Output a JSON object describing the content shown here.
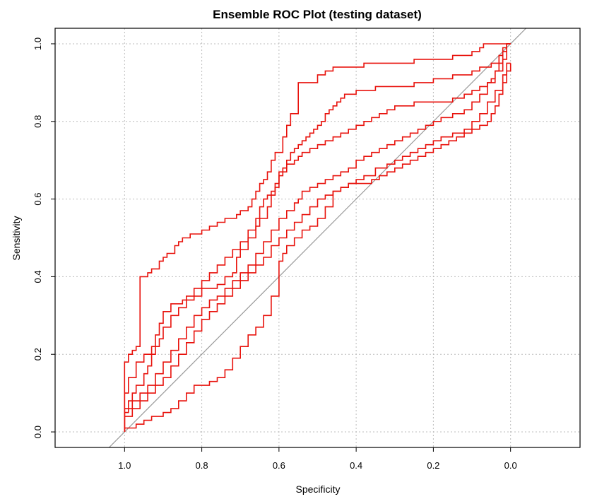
{
  "chart_data": {
    "type": "line",
    "title": "Ensemble ROC Plot (testing dataset)",
    "xlabel": "Specificity",
    "ylabel": "Sensitivity",
    "x_reversed": true,
    "xlim": [
      1.18,
      -0.18
    ],
    "ylim": [
      -0.04,
      1.04
    ],
    "x_ticks": [
      1.0,
      0.8,
      0.6,
      0.4,
      0.2,
      0.0
    ],
    "x_tick_labels": [
      "1.0",
      "0.8",
      "0.6",
      "0.4",
      "0.2",
      "0.0"
    ],
    "y_ticks": [
      0.0,
      0.2,
      0.4,
      0.6,
      0.8,
      1.0
    ],
    "y_tick_labels": [
      "0.0",
      "0.2",
      "0.4",
      "0.6",
      "0.8",
      "1.0"
    ],
    "grid": true,
    "line_color": "#e8120c",
    "reference_line_color": "#999999",
    "reference_line": {
      "x": [
        1.0,
        0.0
      ],
      "y": [
        0.0,
        1.0
      ]
    },
    "series": [
      {
        "x": [
          1.0,
          1.0,
          0.99,
          0.98,
          0.97,
          0.96,
          0.95,
          0.94,
          0.93,
          0.91,
          0.9,
          0.89,
          0.87,
          0.86,
          0.85,
          0.83,
          0.82,
          0.8,
          0.79,
          0.78,
          0.77,
          0.76,
          0.75,
          0.74,
          0.73,
          0.71,
          0.7,
          0.69,
          0.68,
          0.67,
          0.66,
          0.65,
          0.64,
          0.63,
          0.62,
          0.61,
          0.6,
          0.59,
          0.58,
          0.57,
          0.56,
          0.55,
          0.54,
          0.53,
          0.5,
          0.48,
          0.46,
          0.43,
          0.4,
          0.38,
          0.35,
          0.3,
          0.25,
          0.2,
          0.15,
          0.1,
          0.08,
          0.07,
          0.05,
          0.03,
          0.01,
          0.0
        ],
        "y": [
          0.0,
          0.13,
          0.18,
          0.2,
          0.21,
          0.22,
          0.4,
          0.4,
          0.41,
          0.42,
          0.44,
          0.45,
          0.46,
          0.48,
          0.49,
          0.5,
          0.51,
          0.51,
          0.52,
          0.52,
          0.53,
          0.53,
          0.54,
          0.54,
          0.55,
          0.55,
          0.56,
          0.57,
          0.57,
          0.58,
          0.6,
          0.62,
          0.64,
          0.65,
          0.67,
          0.7,
          0.72,
          0.72,
          0.76,
          0.79,
          0.82,
          0.82,
          0.9,
          0.9,
          0.9,
          0.92,
          0.93,
          0.94,
          0.94,
          0.94,
          0.95,
          0.95,
          0.95,
          0.96,
          0.96,
          0.97,
          0.98,
          0.99,
          1.0,
          1.0,
          1.0,
          1.0
        ]
      },
      {
        "x": [
          1.0,
          1.0,
          0.99,
          0.98,
          0.97,
          0.95,
          0.94,
          0.93,
          0.92,
          0.91,
          0.9,
          0.88,
          0.85,
          0.82,
          0.8,
          0.78,
          0.76,
          0.74,
          0.72,
          0.71,
          0.7,
          0.68,
          0.66,
          0.65,
          0.63,
          0.62,
          0.61,
          0.6,
          0.59,
          0.58,
          0.57,
          0.56,
          0.55,
          0.54,
          0.53,
          0.52,
          0.51,
          0.5,
          0.49,
          0.48,
          0.47,
          0.46,
          0.45,
          0.44,
          0.43,
          0.4,
          0.35,
          0.3,
          0.25,
          0.2,
          0.15,
          0.1,
          0.08,
          0.05,
          0.03,
          0.02,
          0.01,
          0.0,
          0.0
        ],
        "y": [
          0.0,
          0.02,
          0.05,
          0.08,
          0.1,
          0.12,
          0.15,
          0.17,
          0.2,
          0.25,
          0.28,
          0.31,
          0.33,
          0.34,
          0.35,
          0.37,
          0.37,
          0.38,
          0.4,
          0.41,
          0.45,
          0.47,
          0.5,
          0.53,
          0.55,
          0.58,
          0.61,
          0.63,
          0.66,
          0.68,
          0.7,
          0.72,
          0.73,
          0.74,
          0.75,
          0.76,
          0.77,
          0.78,
          0.79,
          0.8,
          0.82,
          0.83,
          0.84,
          0.85,
          0.86,
          0.87,
          0.88,
          0.89,
          0.89,
          0.9,
          0.91,
          0.92,
          0.93,
          0.94,
          0.95,
          0.97,
          0.99,
          1.0,
          1.0
        ]
      },
      {
        "x": [
          1.0,
          1.0,
          0.99,
          0.97,
          0.95,
          0.93,
          0.91,
          0.9,
          0.88,
          0.86,
          0.84,
          0.82,
          0.8,
          0.78,
          0.76,
          0.74,
          0.72,
          0.7,
          0.68,
          0.66,
          0.65,
          0.64,
          0.63,
          0.62,
          0.61,
          0.6,
          0.58,
          0.56,
          0.55,
          0.54,
          0.52,
          0.5,
          0.48,
          0.46,
          0.44,
          0.42,
          0.4,
          0.38,
          0.36,
          0.34,
          0.32,
          0.3,
          0.25,
          0.2,
          0.15,
          0.12,
          0.1,
          0.08,
          0.06,
          0.05,
          0.04,
          0.03,
          0.02,
          0.01,
          0.0
        ],
        "y": [
          0.0,
          0.05,
          0.1,
          0.14,
          0.18,
          0.2,
          0.22,
          0.24,
          0.27,
          0.3,
          0.32,
          0.35,
          0.37,
          0.39,
          0.41,
          0.43,
          0.45,
          0.47,
          0.49,
          0.52,
          0.55,
          0.58,
          0.6,
          0.61,
          0.62,
          0.64,
          0.67,
          0.69,
          0.7,
          0.71,
          0.72,
          0.73,
          0.74,
          0.75,
          0.76,
          0.77,
          0.78,
          0.79,
          0.8,
          0.81,
          0.82,
          0.83,
          0.84,
          0.85,
          0.85,
          0.86,
          0.87,
          0.88,
          0.89,
          0.9,
          0.91,
          0.93,
          0.95,
          0.98,
          1.0
        ]
      },
      {
        "x": [
          1.0,
          1.0,
          0.98,
          0.96,
          0.94,
          0.92,
          0.9,
          0.88,
          0.86,
          0.84,
          0.82,
          0.8,
          0.78,
          0.76,
          0.74,
          0.72,
          0.7,
          0.68,
          0.66,
          0.64,
          0.62,
          0.6,
          0.58,
          0.56,
          0.55,
          0.54,
          0.52,
          0.5,
          0.48,
          0.46,
          0.44,
          0.42,
          0.4,
          0.38,
          0.36,
          0.34,
          0.32,
          0.3,
          0.28,
          0.26,
          0.24,
          0.22,
          0.2,
          0.18,
          0.15,
          0.12,
          0.1,
          0.08,
          0.06,
          0.04,
          0.02,
          0.01,
          0.0
        ],
        "y": [
          0.0,
          0.04,
          0.06,
          0.08,
          0.1,
          0.12,
          0.15,
          0.18,
          0.21,
          0.24,
          0.27,
          0.3,
          0.32,
          0.34,
          0.35,
          0.37,
          0.39,
          0.41,
          0.43,
          0.46,
          0.49,
          0.52,
          0.55,
          0.57,
          0.59,
          0.6,
          0.62,
          0.63,
          0.64,
          0.65,
          0.66,
          0.67,
          0.68,
          0.7,
          0.71,
          0.72,
          0.73,
          0.74,
          0.75,
          0.76,
          0.77,
          0.78,
          0.79,
          0.8,
          0.81,
          0.82,
          0.83,
          0.85,
          0.87,
          0.9,
          0.93,
          0.96,
          1.0
        ]
      },
      {
        "x": [
          1.0,
          1.0,
          0.98,
          0.96,
          0.94,
          0.92,
          0.9,
          0.88,
          0.86,
          0.84,
          0.82,
          0.8,
          0.78,
          0.76,
          0.74,
          0.72,
          0.7,
          0.68,
          0.66,
          0.64,
          0.62,
          0.6,
          0.58,
          0.56,
          0.54,
          0.52,
          0.5,
          0.48,
          0.46,
          0.44,
          0.42,
          0.4,
          0.38,
          0.35,
          0.32,
          0.3,
          0.28,
          0.26,
          0.24,
          0.22,
          0.2,
          0.18,
          0.15,
          0.12,
          0.1,
          0.08,
          0.06,
          0.04,
          0.02,
          0.01,
          0.0
        ],
        "y": [
          0.0,
          0.03,
          0.04,
          0.06,
          0.08,
          0.1,
          0.12,
          0.14,
          0.17,
          0.2,
          0.23,
          0.26,
          0.29,
          0.31,
          0.33,
          0.35,
          0.37,
          0.39,
          0.41,
          0.43,
          0.45,
          0.48,
          0.5,
          0.52,
          0.54,
          0.56,
          0.58,
          0.6,
          0.61,
          0.62,
          0.63,
          0.64,
          0.65,
          0.66,
          0.68,
          0.69,
          0.7,
          0.71,
          0.72,
          0.73,
          0.74,
          0.75,
          0.76,
          0.77,
          0.78,
          0.8,
          0.82,
          0.85,
          0.88,
          0.92,
          0.95
        ]
      },
      {
        "x": [
          1.0,
          0.97,
          0.95,
          0.93,
          0.9,
          0.88,
          0.86,
          0.84,
          0.82,
          0.8,
          0.78,
          0.76,
          0.74,
          0.72,
          0.7,
          0.68,
          0.66,
          0.64,
          0.62,
          0.6,
          0.6,
          0.59,
          0.58,
          0.56,
          0.54,
          0.52,
          0.5,
          0.48,
          0.46,
          0.44,
          0.42,
          0.4,
          0.38,
          0.36,
          0.34,
          0.32,
          0.3,
          0.28,
          0.26,
          0.24,
          0.22,
          0.2,
          0.18,
          0.16,
          0.14,
          0.12,
          0.1,
          0.08,
          0.06,
          0.05,
          0.04,
          0.03,
          0.02,
          0.01,
          0.0,
          0.0
        ],
        "y": [
          0.0,
          0.01,
          0.02,
          0.03,
          0.04,
          0.05,
          0.06,
          0.08,
          0.1,
          0.12,
          0.12,
          0.13,
          0.14,
          0.16,
          0.19,
          0.22,
          0.25,
          0.27,
          0.3,
          0.35,
          0.4,
          0.44,
          0.46,
          0.48,
          0.5,
          0.52,
          0.53,
          0.55,
          0.58,
          0.62,
          0.63,
          0.64,
          0.64,
          0.64,
          0.65,
          0.66,
          0.67,
          0.68,
          0.69,
          0.7,
          0.71,
          0.72,
          0.73,
          0.74,
          0.75,
          0.76,
          0.77,
          0.78,
          0.79,
          0.8,
          0.82,
          0.84,
          0.87,
          0.9,
          0.93,
          0.95
        ]
      }
    ]
  }
}
